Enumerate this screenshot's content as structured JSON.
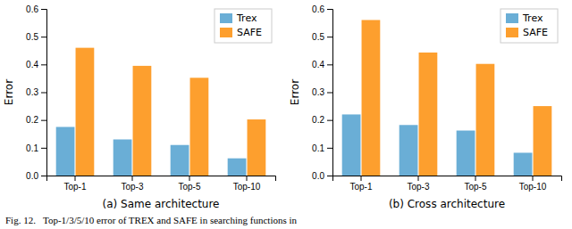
{
  "chart_data": [
    {
      "type": "bar",
      "categories": [
        "Top-1",
        "Top-3",
        "Top-5",
        "Top-10"
      ],
      "series": [
        {
          "name": "Trex",
          "color": "#6aaed6",
          "values": [
            0.175,
            0.13,
            0.11,
            0.062
          ]
        },
        {
          "name": "SAFE",
          "color": "#fd9f2e",
          "values": [
            0.46,
            0.395,
            0.352,
            0.202
          ]
        }
      ],
      "xlabel": "(a) Same architecture",
      "ylabel": "Error",
      "ylim": [
        0,
        0.6
      ],
      "yticks": [
        {
          "value": 0.0,
          "label": "0.0"
        },
        0.1,
        0.2,
        0.3,
        0.4,
        0.5,
        0.6
      ],
      "legend": "upper right",
      "annotations": [
        "Fig. 12.   Top-1/3/5/10 error of TREX and SAFE in searching functions in"
      ]
    },
    {
      "type": "bar",
      "categories": [
        "Top-1",
        "Top-3",
        "Top-5",
        "Top-10"
      ],
      "series": [
        {
          "name": "Trex",
          "color": "#6aaed6",
          "values": [
            0.22,
            0.182,
            0.162,
            0.082
          ]
        },
        {
          "name": "SAFE",
          "color": "#fd9f2e",
          "values": [
            0.56,
            0.443,
            0.402,
            0.25
          ]
        }
      ],
      "xlabel": "(b) Cross architecture",
      "ylabel": "Error",
      "ylim": [
        0,
        0.6
      ],
      "yticks": [
        {
          "value": 0.0,
          "label": "0.0"
        },
        0.1,
        0.2,
        0.3,
        0.4,
        0.5,
        0.6
      ],
      "legend": "upper right"
    }
  ]
}
